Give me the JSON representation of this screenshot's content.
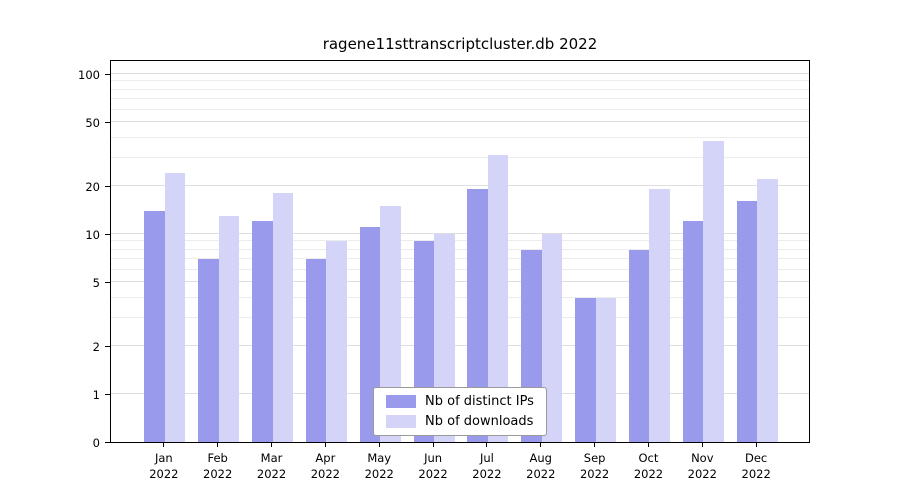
{
  "chart_data": {
    "type": "bar",
    "title": "ragene11sttranscriptcluster.db 2022",
    "categories": [
      "Jan",
      "Feb",
      "Mar",
      "Apr",
      "May",
      "Jun",
      "Jul",
      "Aug",
      "Sep",
      "Oct",
      "Nov",
      "Dec"
    ],
    "year": "2022",
    "series": [
      {
        "name": "Nb of distinct IPs",
        "color": "#9a9aec",
        "values": [
          14,
          7,
          12,
          7,
          11,
          9,
          19,
          8,
          4,
          8,
          12,
          16
        ]
      },
      {
        "name": "Nb of downloads",
        "color": "#d4d4f8",
        "values": [
          24,
          13,
          18,
          9,
          15,
          10,
          31,
          10,
          4,
          19,
          38,
          22
        ]
      }
    ],
    "yscale": "log",
    "yticks": [
      0,
      1,
      2,
      5,
      10,
      20,
      50,
      100
    ],
    "ylim": [
      0,
      115
    ],
    "xlabel": "",
    "ylabel": "",
    "grid": true,
    "legend_position": "bottom-center"
  }
}
